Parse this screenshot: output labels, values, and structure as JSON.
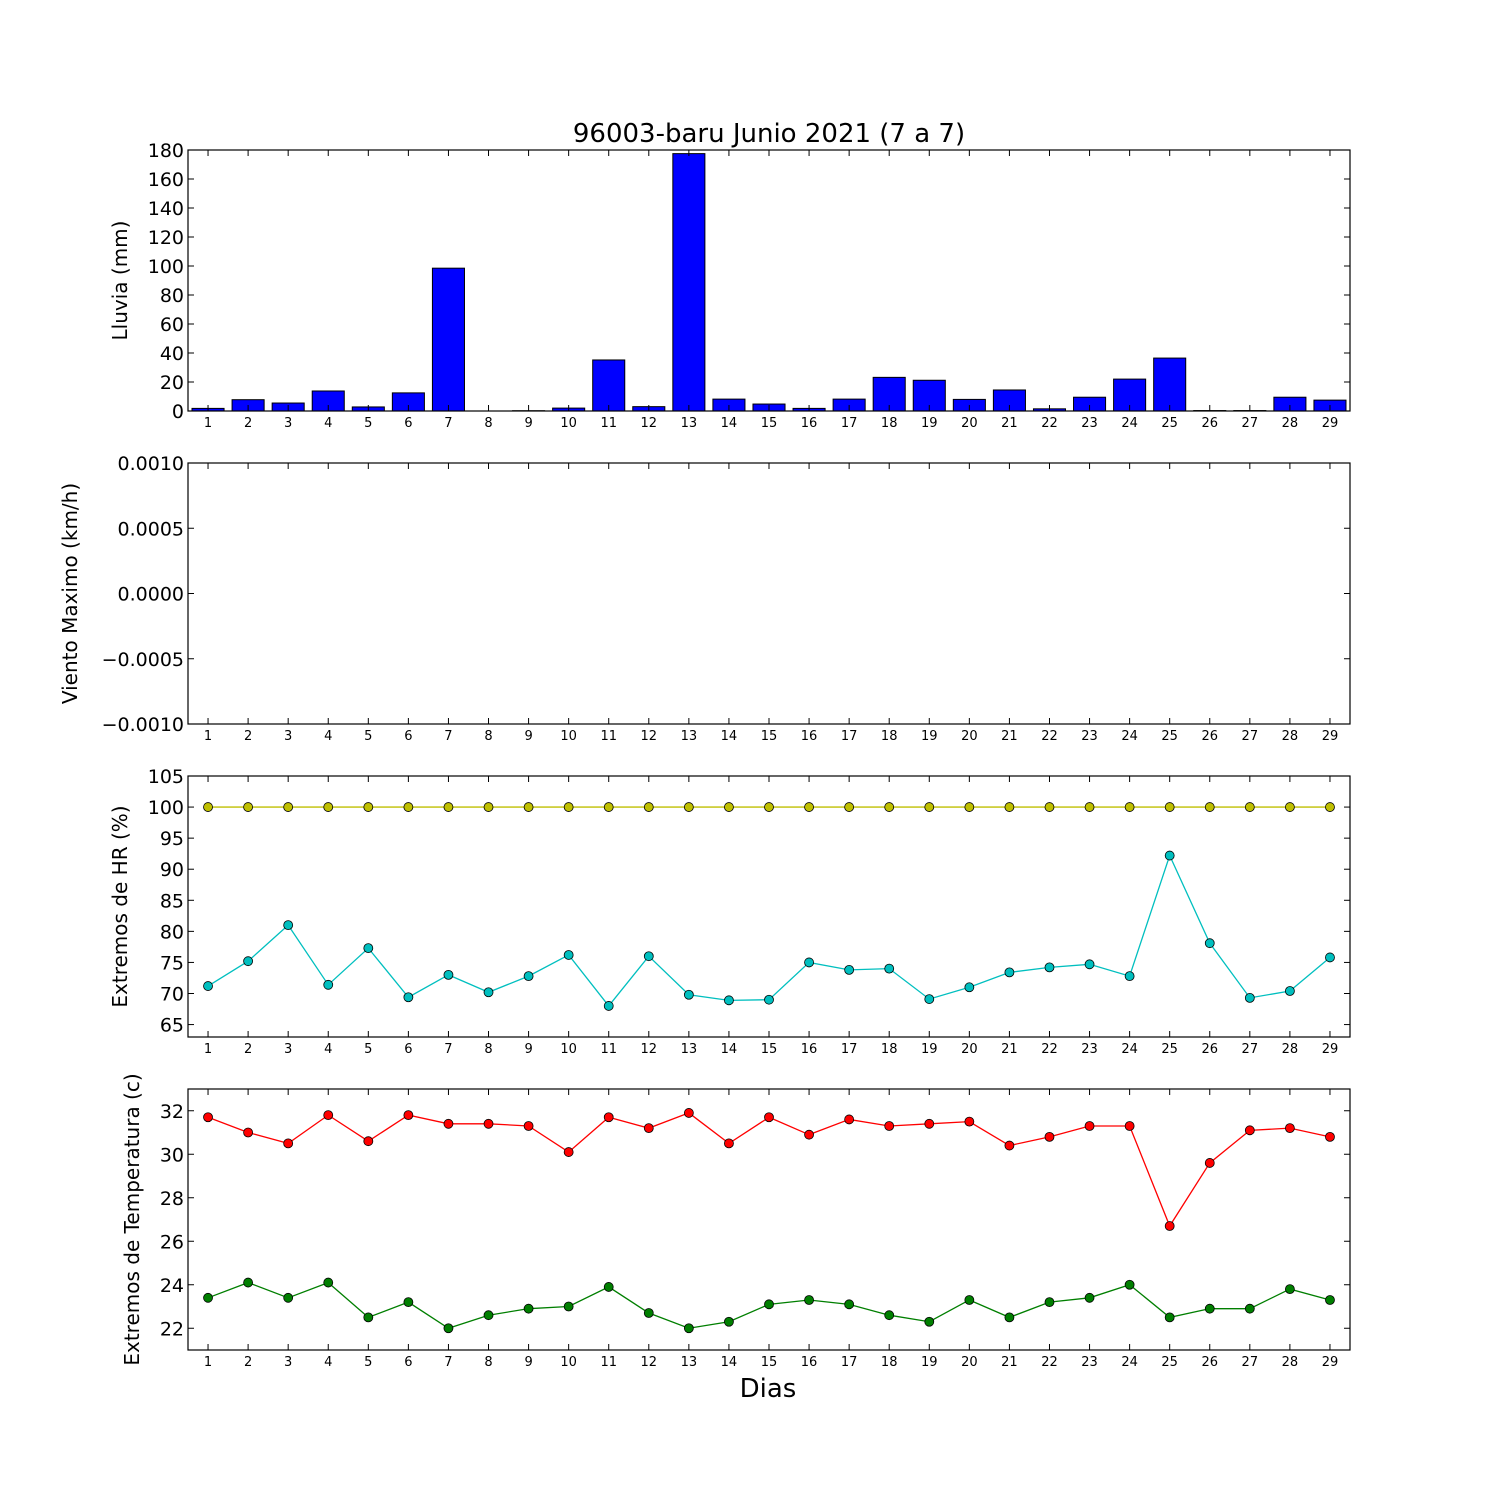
{
  "figure_title": "96003-baru Junio 2021  (7 a 7)",
  "xlabel": "Dias",
  "chart_data": [
    {
      "type": "bar",
      "name": "rain",
      "ylabel": "Lluvia (mm)",
      "ylim": [
        0,
        180
      ],
      "yticks": [
        "0",
        "20",
        "40",
        "60",
        "80",
        "100",
        "120",
        "140",
        "160",
        "180"
      ],
      "ytick_values": [
        0,
        20,
        40,
        60,
        80,
        100,
        120,
        140,
        160,
        180
      ],
      "categories": [
        "1",
        "2",
        "3",
        "4",
        "5",
        "6",
        "7",
        "8",
        "9",
        "10",
        "11",
        "12",
        "13",
        "14",
        "15",
        "16",
        "17",
        "18",
        "19",
        "20",
        "21",
        "22",
        "23",
        "24",
        "25",
        "26",
        "27",
        "28",
        "29"
      ],
      "values": [
        1.8,
        7.8,
        5.5,
        13.8,
        2.8,
        12.5,
        98.5,
        0,
        0.2,
        2.0,
        35.2,
        3.0,
        177.5,
        8.2,
        4.8,
        1.8,
        8.2,
        23.2,
        21.2,
        8.0,
        14.5,
        1.5,
        9.5,
        22.0,
        36.5,
        0.3,
        0.3,
        9.5,
        7.5
      ],
      "color": "#0000ff"
    },
    {
      "type": "line",
      "name": "wind",
      "ylabel": "Viento Maximo (km/h)",
      "ylim": [
        -0.001,
        0.001
      ],
      "yticks": [
        "−0.0010",
        "−0.0005",
        "0.0000",
        "0.0005",
        "0.0010"
      ],
      "ytick_values": [
        -0.001,
        -0.0005,
        0,
        0.0005,
        0.001
      ],
      "categories": [
        "1",
        "2",
        "3",
        "4",
        "5",
        "6",
        "7",
        "8",
        "9",
        "10",
        "11",
        "12",
        "13",
        "14",
        "15",
        "16",
        "17",
        "18",
        "19",
        "20",
        "21",
        "22",
        "23",
        "24",
        "25",
        "26",
        "27",
        "28",
        "29"
      ],
      "series": []
    },
    {
      "type": "line",
      "name": "humidity",
      "ylabel": "Extremos de HR (%)",
      "ylim": [
        63,
        105
      ],
      "yticks": [
        "65",
        "70",
        "75",
        "80",
        "85",
        "90",
        "95",
        "100",
        "105"
      ],
      "ytick_values": [
        65,
        70,
        75,
        80,
        85,
        90,
        95,
        100,
        105
      ],
      "categories": [
        "1",
        "2",
        "3",
        "4",
        "5",
        "6",
        "7",
        "8",
        "9",
        "10",
        "11",
        "12",
        "13",
        "14",
        "15",
        "16",
        "17",
        "18",
        "19",
        "20",
        "21",
        "22",
        "23",
        "24",
        "25",
        "26",
        "27",
        "28",
        "29"
      ],
      "series": [
        {
          "values": [
            100,
            100,
            100,
            100,
            100,
            100,
            100,
            100,
            100,
            100,
            100,
            100,
            100,
            100,
            100,
            100,
            100,
            100,
            100,
            100,
            100,
            100,
            100,
            100,
            100,
            100,
            100,
            100,
            100
          ],
          "color": "#bfbf00"
        },
        {
          "values": [
            71.2,
            75.2,
            81.0,
            71.4,
            77.3,
            69.4,
            73.0,
            70.2,
            72.8,
            76.2,
            68.0,
            76.0,
            69.8,
            68.9,
            69.0,
            75.0,
            73.8,
            74.0,
            69.1,
            71.0,
            73.4,
            74.2,
            74.7,
            72.8,
            92.2,
            78.1,
            69.3,
            70.4,
            75.8
          ],
          "color": "#00bfbf"
        }
      ]
    },
    {
      "type": "line",
      "name": "temperature",
      "ylabel": "Extremos de Temperatura (c)",
      "ylim": [
        21,
        33
      ],
      "yticks": [
        "22",
        "24",
        "26",
        "28",
        "30",
        "32"
      ],
      "ytick_values": [
        22,
        24,
        26,
        28,
        30,
        32
      ],
      "categories": [
        "1",
        "2",
        "3",
        "4",
        "5",
        "6",
        "7",
        "8",
        "9",
        "10",
        "11",
        "12",
        "13",
        "14",
        "15",
        "16",
        "17",
        "18",
        "19",
        "20",
        "21",
        "22",
        "23",
        "24",
        "25",
        "26",
        "27",
        "28",
        "29"
      ],
      "series": [
        {
          "values": [
            31.7,
            31.0,
            30.5,
            31.8,
            30.6,
            31.8,
            31.4,
            31.4,
            31.3,
            30.1,
            31.7,
            31.2,
            31.9,
            30.5,
            31.7,
            30.9,
            31.6,
            31.3,
            31.4,
            31.5,
            30.4,
            30.8,
            31.3,
            31.3,
            26.7,
            29.6,
            31.1,
            31.2,
            30.8
          ],
          "color": "#ff0000"
        },
        {
          "values": [
            23.4,
            24.1,
            23.4,
            24.1,
            22.5,
            23.2,
            22.0,
            22.6,
            22.9,
            23.0,
            23.9,
            22.7,
            22.0,
            22.3,
            23.1,
            23.3,
            23.1,
            22.6,
            22.3,
            23.3,
            22.5,
            23.2,
            23.4,
            24.0,
            22.5,
            22.9,
            22.9,
            23.8,
            23.3
          ],
          "color": "#007f00"
        }
      ]
    }
  ]
}
